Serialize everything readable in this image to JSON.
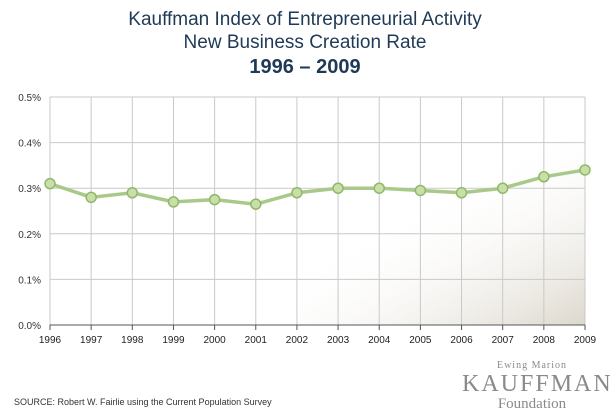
{
  "chart_data": {
    "type": "line",
    "title": "Kauffman Index of Entrepreneurial Activity",
    "subtitle": "New Business Creation Rate",
    "years_label": "1996 – 2009",
    "xlabel": "",
    "ylabel": "",
    "categories": [
      "1996",
      "1997",
      "1998",
      "1999",
      "2000",
      "2001",
      "2002",
      "2003",
      "2004",
      "2005",
      "2006",
      "2007",
      "2008",
      "2009"
    ],
    "series": [
      {
        "values": [
          0.31,
          0.28,
          0.29,
          0.27,
          0.275,
          0.265,
          0.29,
          0.3,
          0.3,
          0.295,
          0.29,
          0.3,
          0.325,
          0.34
        ]
      }
    ],
    "ylim": [
      0,
      0.5
    ],
    "yticks": [
      0.0,
      0.1,
      0.2,
      0.3,
      0.4,
      0.5
    ],
    "ytick_labels": [
      "0.0%",
      "0.1%",
      "0.2%",
      "0.3%",
      "0.4%",
      "0.5%"
    ],
    "grid": true,
    "line_color": "#a9c98a",
    "marker_color": "#c8e0a8",
    "marker_edge": "#8fb86a"
  },
  "footer": {
    "source": "SOURCE: Robert W. Fairlie using the Current Population Survey"
  },
  "logo": {
    "line1": "Ewing Marion",
    "line2": "KAUFFMAN",
    "line3": "Foundation"
  }
}
